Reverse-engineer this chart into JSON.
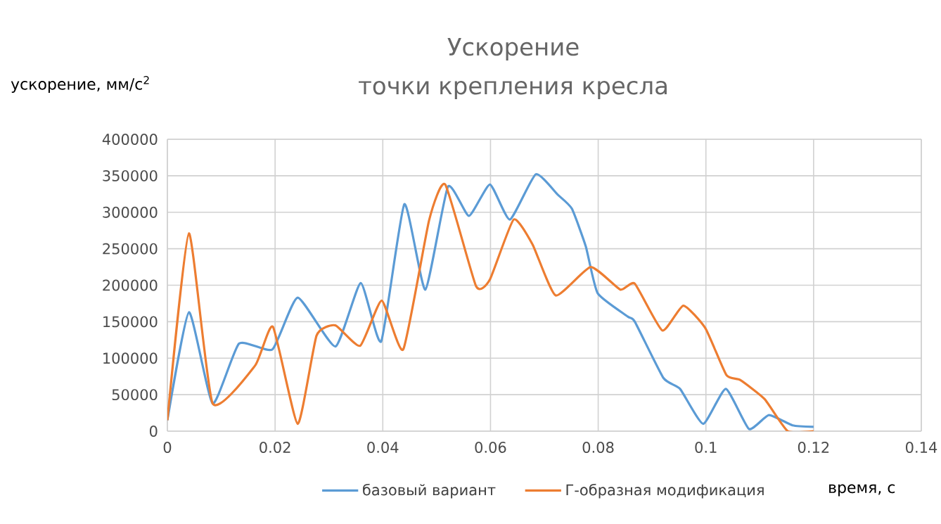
{
  "chart_data": {
    "type": "line",
    "title": "Ускорение",
    "subtitle": "точки крепления кресла",
    "ylabel": "ускорение, мм/с$^{2}$",
    "xlabel": "время, с",
    "xlim": [
      0,
      0.14
    ],
    "xticks": [
      0,
      0.02,
      0.04,
      0.06,
      0.08,
      0.1,
      0.12,
      0.14
    ],
    "ylim": [
      0,
      400000
    ],
    "yticks": [
      0,
      50000,
      100000,
      150000,
      200000,
      250000,
      300000,
      350000,
      400000
    ],
    "grid": true,
    "legend": "bottom",
    "marker": "none",
    "line_style": "solid",
    "series": [
      {
        "name": "базовый вариант",
        "color": "#5b9bd5",
        "x": [
          0,
          0.004,
          0.0084,
          0.0133,
          0.0195,
          0.0242,
          0.0312,
          0.0359,
          0.0397,
          0.044,
          0.0479,
          0.0521,
          0.056,
          0.0599,
          0.0636,
          0.0684,
          0.0725,
          0.0751,
          0.0777,
          0.0799,
          0.0855,
          0.0868,
          0.0921,
          0.0952,
          0.0995,
          0.1037,
          0.108,
          0.1117,
          0.1161,
          0.12
        ],
        "values": [
          15000,
          163000,
          38000,
          120000,
          112000,
          183000,
          116000,
          203000,
          123000,
          311000,
          194000,
          335000,
          295000,
          338000,
          290000,
          352000,
          324000,
          305000,
          253000,
          189000,
          157000,
          150000,
          73000,
          58000,
          10000,
          58000,
          3000,
          22000,
          8000,
          6000
        ]
      },
      {
        "name": "Г-образная модификация",
        "color": "#ed7d31",
        "x": [
          0,
          0.004,
          0.0084,
          0.0163,
          0.0196,
          0.0242,
          0.0277,
          0.0312,
          0.0358,
          0.0398,
          0.0438,
          0.0486,
          0.0516,
          0.0573,
          0.0599,
          0.0643,
          0.0678,
          0.0721,
          0.0786,
          0.0841,
          0.0868,
          0.0919,
          0.0958,
          0.0999,
          0.1038,
          0.1064,
          0.1109,
          0.1152,
          0.12
        ],
        "values": [
          15000,
          271000,
          38000,
          90000,
          143000,
          10000,
          131000,
          145000,
          117000,
          179000,
          112000,
          289000,
          338000,
          199000,
          208000,
          290000,
          256000,
          186000,
          225000,
          194000,
          202000,
          138000,
          172000,
          141000,
          77000,
          70000,
          44000,
          0,
          0
        ]
      }
    ]
  }
}
